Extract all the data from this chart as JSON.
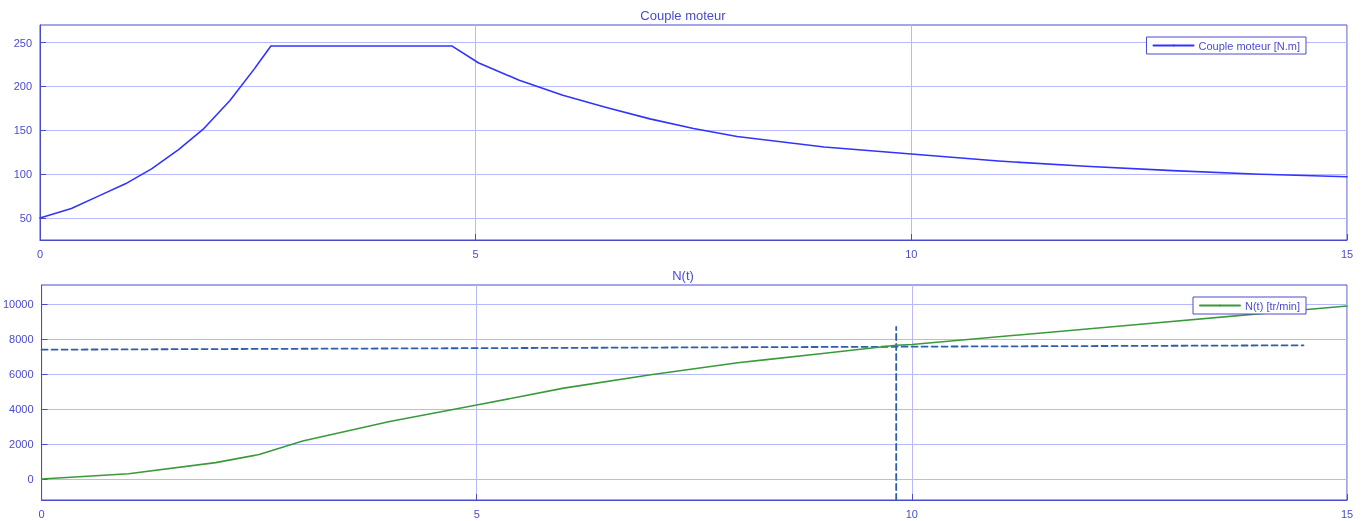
{
  "chart_data": [
    {
      "type": "line",
      "title": "Couple moteur",
      "xlim": [
        0,
        15
      ],
      "xticks": [
        0,
        5,
        10,
        15
      ],
      "ylim": [
        25,
        270
      ],
      "yticks": [
        50,
        100,
        150,
        200,
        250
      ],
      "grid": true,
      "legend": "top right",
      "marker": "none",
      "series": [
        {
          "name": "Couple moteur [N.m]",
          "color": "#3333ff",
          "line_style": "solid",
          "x": [
            0,
            0.36,
            0.67,
            0.98,
            1.28,
            1.59,
            1.87,
            2.18,
            2.46,
            2.65,
            4.73,
            5.03,
            5.5,
            6,
            6.5,
            7,
            7.5,
            8,
            9,
            10,
            11,
            12,
            13,
            14,
            15
          ],
          "values": [
            50,
            61,
            75,
            89,
            106,
            128,
            151,
            184,
            220,
            246,
            246,
            227,
            207,
            190,
            176,
            163,
            152,
            143,
            131,
            123,
            115,
            109,
            104,
            100,
            97
          ]
        }
      ]
    },
    {
      "type": "line",
      "title": "N(t)",
      "xlim": [
        0,
        15
      ],
      "xticks": [
        0,
        5,
        10,
        15
      ],
      "ylim": [
        -1200,
        11100
      ],
      "yticks": [
        0,
        2000,
        4000,
        6000,
        8000,
        10000
      ],
      "grid": true,
      "legend": "top right",
      "marker": "none",
      "series": [
        {
          "name": "N(t) [tr/min]",
          "color": "#3a9a3a",
          "line_style": "solid",
          "x": [
            0,
            1,
            2,
            2.5,
            3,
            4,
            5,
            6,
            7,
            8,
            9,
            9.82,
            10,
            12.5,
            15
          ],
          "values": [
            0,
            300,
            940,
            1400,
            2170,
            3290,
            4230,
            5200,
            5970,
            6650,
            7200,
            7650,
            7700,
            8800,
            9900
          ]
        },
        {
          "color": "#2e5fa8",
          "line_style": "dashed",
          "x": [
            0,
            14.5
          ],
          "values": [
            7400,
            7650
          ]
        },
        {
          "color": "#2e5fa8",
          "line_style": "dashed",
          "x": [
            9.82,
            9.82
          ],
          "values": [
            -1200,
            8700
          ]
        }
      ]
    }
  ]
}
